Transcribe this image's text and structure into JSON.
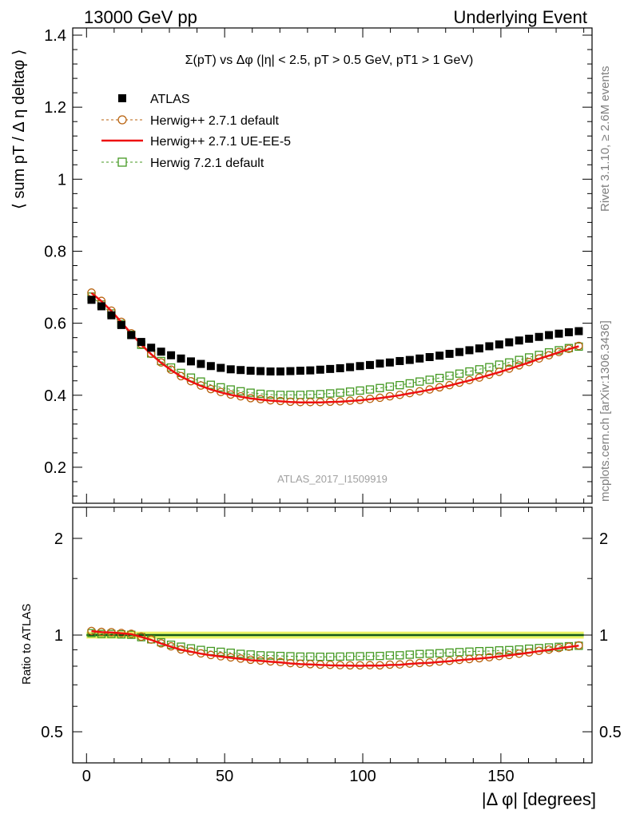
{
  "header": {
    "left": "13000 GeV pp",
    "right": "Underlying Event"
  },
  "title": "Σ(pT) vs Δφ (|η| < 2.5, pT > 0.5 GeV, pT1 > 1 GeV)",
  "side_labels": {
    "rivet": "Rivet 3.1.10, ≥ 2.6M events",
    "mcplots": "mcplots.cern.ch [arXiv:1306.3436]"
  },
  "analysis_id": "ATLAS_2017_I1509919",
  "colors": {
    "atlas": "#000000",
    "herwig_default": "#b8620e",
    "herwig_ueee5": "#ee1111",
    "herwig72": "#449922",
    "band_yellow": "#eef266",
    "band_green": "#33aa33"
  },
  "chart_data": [
    {
      "type": "scatter",
      "panel": "main",
      "ylabel": "⟨ sum pT / Δ η deltaφ ⟩",
      "ylim": [
        0.1,
        1.42
      ],
      "xlim": [
        -5,
        183
      ],
      "yticks": [
        0.2,
        0.4,
        0.6,
        0.8,
        1.0,
        1.2,
        1.4
      ],
      "ytick_labels": [
        "0.2",
        "0.4",
        "0.6",
        "0.8",
        "1",
        "1.2",
        "1.4"
      ],
      "legend_position": "top-left",
      "x": [
        1.8,
        5.4,
        9.0,
        12.6,
        16.2,
        19.8,
        23.4,
        27.0,
        30.6,
        34.2,
        37.8,
        41.4,
        45.0,
        48.6,
        52.2,
        55.8,
        59.4,
        63.0,
        66.6,
        70.2,
        73.8,
        77.4,
        81.0,
        84.6,
        88.2,
        91.8,
        95.4,
        99.0,
        102.6,
        106.2,
        109.8,
        113.4,
        117.0,
        120.6,
        124.2,
        127.8,
        131.4,
        135.0,
        138.6,
        142.2,
        145.8,
        149.4,
        153.0,
        156.6,
        160.2,
        163.8,
        167.4,
        171.0,
        174.6,
        178.2
      ],
      "series": [
        {
          "name": "ATLAS",
          "marker": "filled-square",
          "values": [
            0.665,
            0.647,
            0.622,
            0.595,
            0.567,
            0.548,
            0.532,
            0.521,
            0.511,
            0.502,
            0.494,
            0.487,
            0.481,
            0.476,
            0.472,
            0.47,
            0.468,
            0.467,
            0.466,
            0.466,
            0.467,
            0.468,
            0.469,
            0.471,
            0.473,
            0.475,
            0.478,
            0.481,
            0.484,
            0.488,
            0.491,
            0.495,
            0.498,
            0.502,
            0.506,
            0.51,
            0.515,
            0.52,
            0.525,
            0.53,
            0.536,
            0.541,
            0.547,
            0.552,
            0.557,
            0.562,
            0.567,
            0.571,
            0.575,
            0.578
          ]
        },
        {
          "name": "Herwig++ 2.7.1 default",
          "marker": "open-circle-dashed",
          "values": [
            0.685,
            0.662,
            0.635,
            0.604,
            0.572,
            0.542,
            0.515,
            0.491,
            0.471,
            0.453,
            0.439,
            0.427,
            0.417,
            0.409,
            0.402,
            0.397,
            0.392,
            0.389,
            0.386,
            0.384,
            0.382,
            0.381,
            0.381,
            0.381,
            0.382,
            0.383,
            0.385,
            0.387,
            0.39,
            0.393,
            0.397,
            0.401,
            0.406,
            0.411,
            0.416,
            0.422,
            0.428,
            0.435,
            0.442,
            0.449,
            0.457,
            0.465,
            0.474,
            0.483,
            0.492,
            0.502,
            0.511,
            0.52,
            0.529,
            0.537
          ]
        },
        {
          "name": "Herwig++ 2.7.1 UE-EE-5",
          "marker": "solid-line",
          "values": [
            0.684,
            0.661,
            0.634,
            0.603,
            0.571,
            0.541,
            0.514,
            0.49,
            0.47,
            0.452,
            0.438,
            0.426,
            0.416,
            0.408,
            0.401,
            0.396,
            0.391,
            0.388,
            0.385,
            0.383,
            0.381,
            0.38,
            0.38,
            0.38,
            0.381,
            0.382,
            0.384,
            0.386,
            0.389,
            0.392,
            0.396,
            0.4,
            0.405,
            0.41,
            0.415,
            0.421,
            0.427,
            0.434,
            0.441,
            0.448,
            0.456,
            0.464,
            0.473,
            0.482,
            0.491,
            0.501,
            0.51,
            0.519,
            0.528,
            0.536
          ]
        },
        {
          "name": "Herwig 7.2.1 default",
          "marker": "open-square-dashed",
          "values": [
            0.674,
            0.652,
            0.627,
            0.598,
            0.568,
            0.54,
            0.516,
            0.495,
            0.477,
            0.462,
            0.449,
            0.438,
            0.429,
            0.422,
            0.416,
            0.411,
            0.407,
            0.404,
            0.402,
            0.401,
            0.401,
            0.401,
            0.402,
            0.403,
            0.405,
            0.407,
            0.41,
            0.413,
            0.416,
            0.42,
            0.424,
            0.428,
            0.433,
            0.438,
            0.443,
            0.448,
            0.454,
            0.46,
            0.466,
            0.472,
            0.478,
            0.485,
            0.491,
            0.498,
            0.505,
            0.512,
            0.519,
            0.525,
            0.531,
            0.535
          ]
        }
      ]
    },
    {
      "type": "scatter",
      "panel": "ratio",
      "ylabel": "Ratio to ATLAS",
      "xlabel": "|Δ φ| [degrees]",
      "scale": "log",
      "ylim": [
        0.4,
        2.5
      ],
      "yticks": [
        0.5,
        1,
        2
      ],
      "ytick_labels": [
        "0.5",
        "1",
        "2"
      ],
      "xticks": [
        0,
        50,
        100,
        150
      ],
      "xtick_labels": [
        "0",
        "50",
        "100",
        "150"
      ],
      "series": [
        {
          "name": "ATLAS",
          "values": [
            1.0,
            1.0
          ]
        },
        {
          "name": "Herwig++ 2.7.1 default",
          "values": [
            1.03,
            1.023,
            1.021,
            1.015,
            1.009,
            0.989,
            0.968,
            0.942,
            0.922,
            0.902,
            0.889,
            0.877,
            0.867,
            0.859,
            0.852,
            0.845,
            0.838,
            0.833,
            0.828,
            0.824,
            0.818,
            0.814,
            0.812,
            0.809,
            0.808,
            0.806,
            0.805,
            0.805,
            0.806,
            0.805,
            0.809,
            0.81,
            0.815,
            0.819,
            0.822,
            0.827,
            0.831,
            0.837,
            0.842,
            0.847,
            0.853,
            0.86,
            0.867,
            0.875,
            0.883,
            0.893,
            0.901,
            0.911,
            0.92,
            0.929
          ]
        },
        {
          "name": "Herwig++ 2.7.1 UE-EE-5",
          "values": [
            1.029,
            1.021,
            1.019,
            1.013,
            1.007,
            0.987,
            0.966,
            0.941,
            0.92,
            0.9,
            0.887,
            0.875,
            0.865,
            0.857,
            0.85,
            0.843,
            0.835,
            0.831,
            0.826,
            0.822,
            0.816,
            0.812,
            0.81,
            0.807,
            0.805,
            0.804,
            0.803,
            0.802,
            0.804,
            0.803,
            0.807,
            0.808,
            0.813,
            0.817,
            0.82,
            0.825,
            0.829,
            0.835,
            0.84,
            0.845,
            0.851,
            0.858,
            0.865,
            0.873,
            0.881,
            0.891,
            0.899,
            0.909,
            0.918,
            0.927
          ]
        },
        {
          "name": "Herwig 7.2.1 default",
          "values": [
            1.014,
            1.008,
            1.008,
            1.005,
            1.002,
            0.985,
            0.97,
            0.95,
            0.933,
            0.92,
            0.909,
            0.899,
            0.892,
            0.887,
            0.881,
            0.874,
            0.87,
            0.865,
            0.863,
            0.861,
            0.859,
            0.857,
            0.857,
            0.856,
            0.856,
            0.857,
            0.858,
            0.859,
            0.86,
            0.861,
            0.864,
            0.865,
            0.869,
            0.873,
            0.875,
            0.878,
            0.882,
            0.885,
            0.888,
            0.891,
            0.892,
            0.896,
            0.898,
            0.902,
            0.907,
            0.911,
            0.915,
            0.919,
            0.923,
            0.926
          ]
        }
      ]
    }
  ]
}
